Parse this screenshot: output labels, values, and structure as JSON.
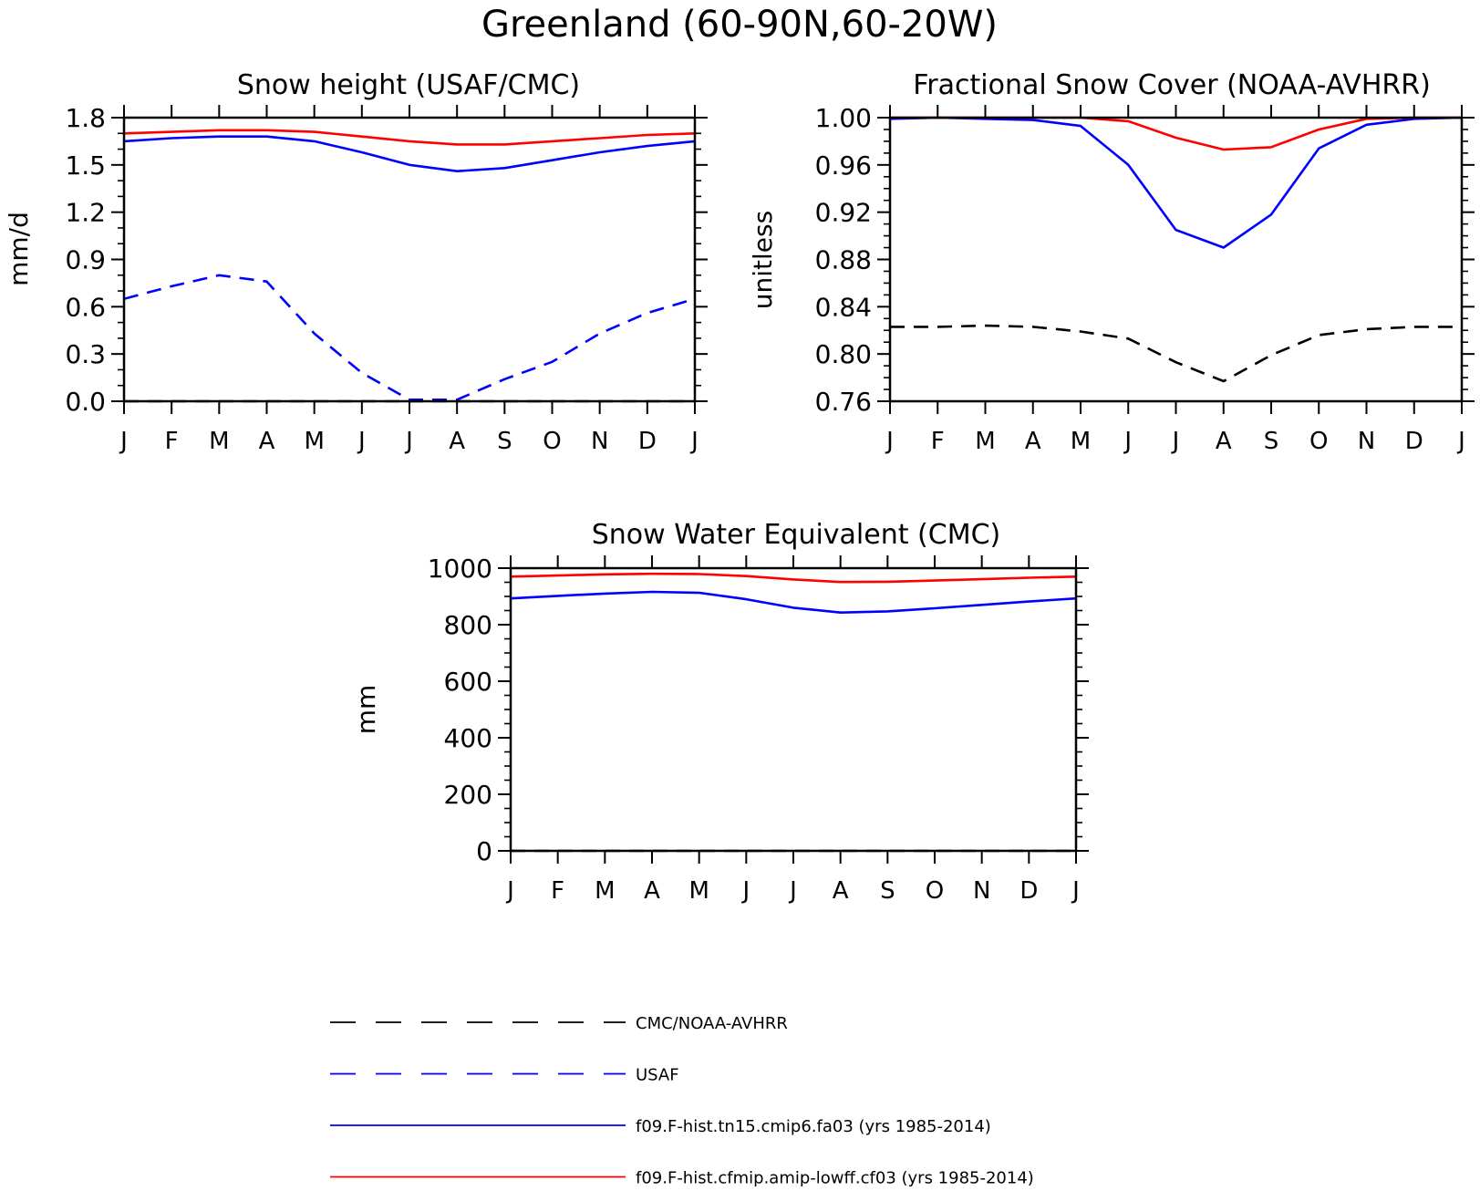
{
  "figure": {
    "title": "Greenland (60-90N,60-20W)"
  },
  "chart_data": [
    {
      "type": "line",
      "title": "Snow height (USAF/CMC)",
      "xlabel": "",
      "ylabel": "mm/d",
      "ylim": [
        0.0,
        1.8
      ],
      "yticks": [
        "0.0",
        "0.3",
        "0.6",
        "0.9",
        "1.2",
        "1.5",
        "1.8"
      ],
      "x": [
        "J",
        "F",
        "M",
        "A",
        "M",
        "J",
        "J",
        "A",
        "S",
        "O",
        "N",
        "D",
        "J"
      ],
      "series": [
        {
          "ref": "model_tn15",
          "values": [
            1.65,
            1.67,
            1.68,
            1.68,
            1.65,
            1.58,
            1.5,
            1.46,
            1.48,
            1.53,
            1.58,
            1.62,
            1.65
          ]
        },
        {
          "ref": "model_amip",
          "values": [
            1.7,
            1.71,
            1.72,
            1.72,
            1.71,
            1.68,
            1.65,
            1.63,
            1.63,
            1.65,
            1.67,
            1.69,
            1.7
          ]
        },
        {
          "ref": "usaf",
          "values": [
            0.65,
            0.73,
            0.8,
            0.76,
            0.43,
            0.18,
            0.01,
            0.01,
            0.14,
            0.25,
            0.43,
            0.56,
            0.65
          ]
        },
        {
          "ref": "obs_cmc",
          "values": [
            0.0,
            0.0,
            0.0,
            0.0,
            0.0,
            0.0,
            0.0,
            0.0,
            0.0,
            0.0,
            0.0,
            0.0,
            0.0
          ]
        }
      ]
    },
    {
      "type": "line",
      "title": "Fractional Snow Cover (NOAA-AVHRR)",
      "xlabel": "",
      "ylabel": "unitless",
      "ylim": [
        0.76,
        1.0
      ],
      "yticks": [
        "0.76",
        "0.80",
        "0.84",
        "0.88",
        "0.92",
        "0.96",
        "1.00"
      ],
      "x": [
        "J",
        "F",
        "M",
        "A",
        "M",
        "J",
        "J",
        "A",
        "S",
        "O",
        "N",
        "D",
        "J"
      ],
      "series": [
        {
          "ref": "model_tn15",
          "values": [
            0.999,
            1.0,
            0.999,
            0.998,
            0.993,
            0.96,
            0.905,
            0.89,
            0.918,
            0.974,
            0.994,
            0.999,
            1.0
          ]
        },
        {
          "ref": "model_amip",
          "values": [
            1.0,
            1.0,
            1.0,
            1.0,
            1.0,
            0.997,
            0.983,
            0.973,
            0.975,
            0.99,
            0.999,
            1.0,
            1.0
          ]
        },
        {
          "ref": "obs_cmc",
          "values": [
            0.823,
            0.823,
            0.824,
            0.823,
            0.819,
            0.813,
            0.793,
            0.777,
            0.799,
            0.816,
            0.821,
            0.823,
            0.823
          ]
        }
      ]
    },
    {
      "type": "line",
      "title": "Snow Water Equivalent (CMC)",
      "xlabel": "",
      "ylabel": "mm",
      "ylim": [
        0,
        1000
      ],
      "yticks": [
        "0",
        "200",
        "400",
        "600",
        "800",
        "1000"
      ],
      "x": [
        "J",
        "F",
        "M",
        "A",
        "M",
        "J",
        "J",
        "A",
        "S",
        "O",
        "N",
        "D",
        "J"
      ],
      "series": [
        {
          "ref": "model_tn15",
          "values": [
            893,
            902,
            910,
            916,
            913,
            890,
            860,
            843,
            847,
            858,
            870,
            882,
            893
          ]
        },
        {
          "ref": "model_amip",
          "values": [
            970,
            974,
            978,
            980,
            979,
            972,
            960,
            951,
            952,
            956,
            961,
            966,
            970
          ]
        },
        {
          "ref": "obs_cmc",
          "values": [
            0,
            0,
            0,
            0,
            0,
            0,
            0,
            0,
            0,
            0,
            0,
            0,
            0
          ]
        }
      ]
    }
  ],
  "legend": {
    "placement": "bottom",
    "items": [
      {
        "key": "obs_cmc",
        "label": "CMC/NOAA-AVHRR",
        "color": "#000000",
        "dash": true
      },
      {
        "key": "usaf",
        "label": "USAF",
        "color": "#0000ff",
        "dash": true
      },
      {
        "key": "model_tn15",
        "label": "f09.F-hist.tn15.cmip6.fa03 (yrs 1985-2014)",
        "color": "#0000ff",
        "dash": false
      },
      {
        "key": "model_amip",
        "label": "f09.F-hist.cfmip.amip-lowff.cf03 (yrs 1985-2014)",
        "color": "#ff0000",
        "dash": false
      }
    ]
  }
}
